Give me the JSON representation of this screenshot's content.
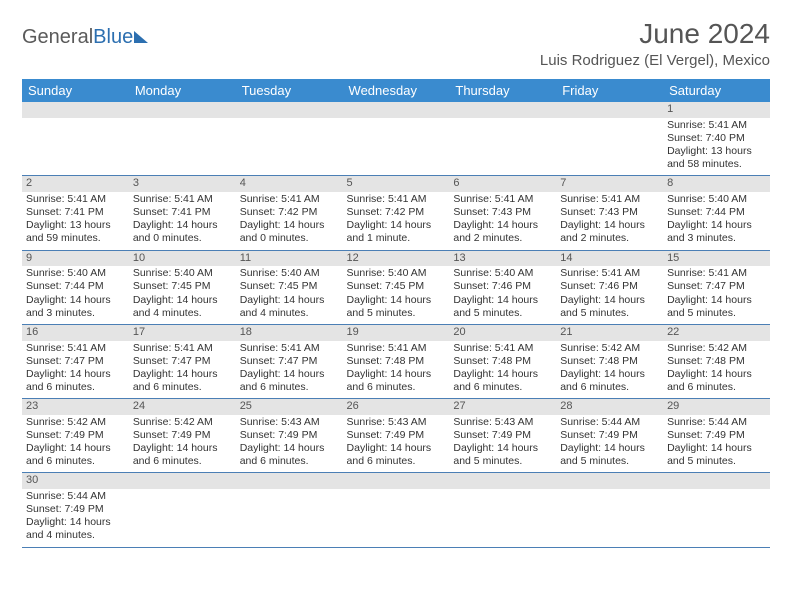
{
  "logo": {
    "text_gray": "General",
    "text_blue": "Blue"
  },
  "header": {
    "month_title": "June 2024",
    "location": "Luis Rodriguez (El Vergel), Mexico"
  },
  "colors": {
    "header_bg": "#3a8bcf",
    "header_text": "#ffffff",
    "daynum_bg": "#e4e4e4",
    "row_divider": "#4b7fb5",
    "logo_gray": "#5a5a5a",
    "logo_blue": "#2c6fb0"
  },
  "layout": {
    "columns": 7,
    "font_family": "Arial",
    "title_fontsize_pt": 21,
    "location_fontsize_pt": 11,
    "header_fontsize_pt": 10,
    "cell_fontsize_pt": 8
  },
  "day_headers": [
    "Sunday",
    "Monday",
    "Tuesday",
    "Wednesday",
    "Thursday",
    "Friday",
    "Saturday"
  ],
  "weeks": [
    {
      "nums": [
        "",
        "",
        "",
        "",
        "",
        "",
        "1"
      ],
      "cells": [
        null,
        null,
        null,
        null,
        null,
        null,
        {
          "sunrise": "Sunrise: 5:41 AM",
          "sunset": "Sunset: 7:40 PM",
          "daylight": "Daylight: 13 hours and 58 minutes."
        }
      ]
    },
    {
      "nums": [
        "2",
        "3",
        "4",
        "5",
        "6",
        "7",
        "8"
      ],
      "cells": [
        {
          "sunrise": "Sunrise: 5:41 AM",
          "sunset": "Sunset: 7:41 PM",
          "daylight": "Daylight: 13 hours and 59 minutes."
        },
        {
          "sunrise": "Sunrise: 5:41 AM",
          "sunset": "Sunset: 7:41 PM",
          "daylight": "Daylight: 14 hours and 0 minutes."
        },
        {
          "sunrise": "Sunrise: 5:41 AM",
          "sunset": "Sunset: 7:42 PM",
          "daylight": "Daylight: 14 hours and 0 minutes."
        },
        {
          "sunrise": "Sunrise: 5:41 AM",
          "sunset": "Sunset: 7:42 PM",
          "daylight": "Daylight: 14 hours and 1 minute."
        },
        {
          "sunrise": "Sunrise: 5:41 AM",
          "sunset": "Sunset: 7:43 PM",
          "daylight": "Daylight: 14 hours and 2 minutes."
        },
        {
          "sunrise": "Sunrise: 5:41 AM",
          "sunset": "Sunset: 7:43 PM",
          "daylight": "Daylight: 14 hours and 2 minutes."
        },
        {
          "sunrise": "Sunrise: 5:40 AM",
          "sunset": "Sunset: 7:44 PM",
          "daylight": "Daylight: 14 hours and 3 minutes."
        }
      ]
    },
    {
      "nums": [
        "9",
        "10",
        "11",
        "12",
        "13",
        "14",
        "15"
      ],
      "cells": [
        {
          "sunrise": "Sunrise: 5:40 AM",
          "sunset": "Sunset: 7:44 PM",
          "daylight": "Daylight: 14 hours and 3 minutes."
        },
        {
          "sunrise": "Sunrise: 5:40 AM",
          "sunset": "Sunset: 7:45 PM",
          "daylight": "Daylight: 14 hours and 4 minutes."
        },
        {
          "sunrise": "Sunrise: 5:40 AM",
          "sunset": "Sunset: 7:45 PM",
          "daylight": "Daylight: 14 hours and 4 minutes."
        },
        {
          "sunrise": "Sunrise: 5:40 AM",
          "sunset": "Sunset: 7:45 PM",
          "daylight": "Daylight: 14 hours and 5 minutes."
        },
        {
          "sunrise": "Sunrise: 5:40 AM",
          "sunset": "Sunset: 7:46 PM",
          "daylight": "Daylight: 14 hours and 5 minutes."
        },
        {
          "sunrise": "Sunrise: 5:41 AM",
          "sunset": "Sunset: 7:46 PM",
          "daylight": "Daylight: 14 hours and 5 minutes."
        },
        {
          "sunrise": "Sunrise: 5:41 AM",
          "sunset": "Sunset: 7:47 PM",
          "daylight": "Daylight: 14 hours and 5 minutes."
        }
      ]
    },
    {
      "nums": [
        "16",
        "17",
        "18",
        "19",
        "20",
        "21",
        "22"
      ],
      "cells": [
        {
          "sunrise": "Sunrise: 5:41 AM",
          "sunset": "Sunset: 7:47 PM",
          "daylight": "Daylight: 14 hours and 6 minutes."
        },
        {
          "sunrise": "Sunrise: 5:41 AM",
          "sunset": "Sunset: 7:47 PM",
          "daylight": "Daylight: 14 hours and 6 minutes."
        },
        {
          "sunrise": "Sunrise: 5:41 AM",
          "sunset": "Sunset: 7:47 PM",
          "daylight": "Daylight: 14 hours and 6 minutes."
        },
        {
          "sunrise": "Sunrise: 5:41 AM",
          "sunset": "Sunset: 7:48 PM",
          "daylight": "Daylight: 14 hours and 6 minutes."
        },
        {
          "sunrise": "Sunrise: 5:41 AM",
          "sunset": "Sunset: 7:48 PM",
          "daylight": "Daylight: 14 hours and 6 minutes."
        },
        {
          "sunrise": "Sunrise: 5:42 AM",
          "sunset": "Sunset: 7:48 PM",
          "daylight": "Daylight: 14 hours and 6 minutes."
        },
        {
          "sunrise": "Sunrise: 5:42 AM",
          "sunset": "Sunset: 7:48 PM",
          "daylight": "Daylight: 14 hours and 6 minutes."
        }
      ]
    },
    {
      "nums": [
        "23",
        "24",
        "25",
        "26",
        "27",
        "28",
        "29"
      ],
      "cells": [
        {
          "sunrise": "Sunrise: 5:42 AM",
          "sunset": "Sunset: 7:49 PM",
          "daylight": "Daylight: 14 hours and 6 minutes."
        },
        {
          "sunrise": "Sunrise: 5:42 AM",
          "sunset": "Sunset: 7:49 PM",
          "daylight": "Daylight: 14 hours and 6 minutes."
        },
        {
          "sunrise": "Sunrise: 5:43 AM",
          "sunset": "Sunset: 7:49 PM",
          "daylight": "Daylight: 14 hours and 6 minutes."
        },
        {
          "sunrise": "Sunrise: 5:43 AM",
          "sunset": "Sunset: 7:49 PM",
          "daylight": "Daylight: 14 hours and 6 minutes."
        },
        {
          "sunrise": "Sunrise: 5:43 AM",
          "sunset": "Sunset: 7:49 PM",
          "daylight": "Daylight: 14 hours and 5 minutes."
        },
        {
          "sunrise": "Sunrise: 5:44 AM",
          "sunset": "Sunset: 7:49 PM",
          "daylight": "Daylight: 14 hours and 5 minutes."
        },
        {
          "sunrise": "Sunrise: 5:44 AM",
          "sunset": "Sunset: 7:49 PM",
          "daylight": "Daylight: 14 hours and 5 minutes."
        }
      ]
    },
    {
      "nums": [
        "30",
        "",
        "",
        "",
        "",
        "",
        ""
      ],
      "cells": [
        {
          "sunrise": "Sunrise: 5:44 AM",
          "sunset": "Sunset: 7:49 PM",
          "daylight": "Daylight: 14 hours and 4 minutes."
        },
        null,
        null,
        null,
        null,
        null,
        null
      ]
    }
  ]
}
